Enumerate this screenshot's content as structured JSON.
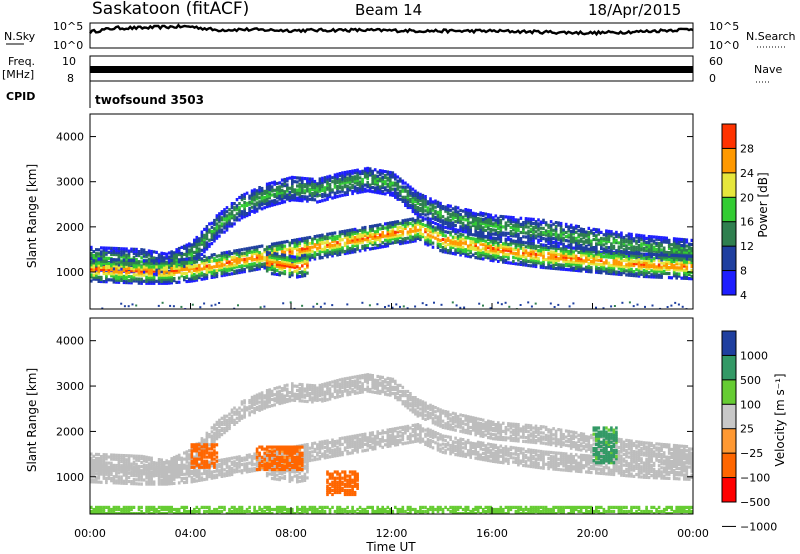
{
  "header": {
    "station": "Saskatoon (fitACF)",
    "beam": "Beam 14",
    "date": "18/Apr/2015"
  },
  "colors": {
    "power": [
      "#1e1eff",
      "#1f3f9f",
      "#2f7f4f",
      "#33cc33",
      "#e6e63c",
      "#ff9900",
      "#ff3300"
    ],
    "velocity": [
      "#ff0000",
      "#ff6600",
      "#ff9933",
      "#c8c8c8",
      "#66cc33",
      "#339966",
      "#1f3f9f"
    ],
    "ground_scatter": "#bdbdbd"
  },
  "chart_data": [
    {
      "type": "line",
      "name": "nsky-nsearch",
      "left_label": "N.Sky",
      "right_label": "N.Search",
      "left_ticks": [
        "10^5",
        "10^0"
      ],
      "right_ticks": [
        "10^5",
        "10^0"
      ],
      "x_hours": [
        0,
        1,
        2,
        3,
        4,
        5,
        6,
        8,
        10,
        12,
        14,
        16,
        18,
        20,
        22,
        24
      ],
      "log_values": [
        3.2,
        4.0,
        4.0,
        4.2,
        4.3,
        3.6,
        3.7,
        3.5,
        3.6,
        3.5,
        3.4,
        3.4,
        3.2,
        3.0,
        3.3,
        3.8
      ]
    },
    {
      "type": "line",
      "name": "frequency-nave",
      "left_label": "Freq.",
      "left_unit": "[MHz]",
      "right_label": "Nave",
      "left_ticks": [
        "10",
        "8"
      ],
      "right_ticks": [
        "60",
        "0"
      ],
      "approx_freq_mhz": 9.4
    },
    {
      "type": "table",
      "name": "cpid",
      "label": "CPID",
      "value": "twofsound 3503"
    },
    {
      "type": "heatmap",
      "name": "power",
      "ylabel": "Slant Range [km]",
      "yticks": [
        1000,
        2000,
        3000,
        4000
      ],
      "ylim": [
        180,
        4500
      ],
      "colorbar_label": "Power [dB]",
      "colorbar_ticks": [
        4,
        8,
        12,
        16,
        20,
        24,
        28
      ],
      "colorbar_range": [
        0,
        30
      ],
      "bands": [
        {
          "range_km_at_hour": [
            [
              0,
              1300
            ],
            [
              2,
              1250
            ],
            [
              3,
              1150
            ],
            [
              4,
              1400
            ],
            [
              5,
              2000
            ],
            [
              6,
              2450
            ],
            [
              7,
              2700
            ],
            [
              8,
              2850
            ],
            [
              9,
              2800
            ],
            [
              10,
              2950
            ],
            [
              11,
              3050
            ],
            [
              12,
              2950
            ],
            [
              13,
              2500
            ],
            [
              14,
              2250
            ],
            [
              16,
              2000
            ],
            [
              18,
              1900
            ],
            [
              20,
              1700
            ],
            [
              22,
              1550
            ],
            [
              24,
              1450
            ]
          ],
          "peak_db": 14
        },
        {
          "range_km_at_hour": [
            [
              0,
              1050
            ],
            [
              2,
              1000
            ],
            [
              3,
              1000
            ],
            [
              4,
              1050
            ],
            [
              13,
              1950
            ],
            [
              14,
              1700
            ],
            [
              16,
              1500
            ],
            [
              18,
              1350
            ],
            [
              20,
              1250
            ],
            [
              22,
              1150
            ],
            [
              24,
              1100
            ]
          ],
          "peak_db": 26
        },
        {
          "range_km_at_hour": [
            [
              7.0,
              1200
            ],
            [
              7.6,
              1150
            ],
            [
              8.1,
              1100
            ],
            [
              8.6,
              1150
            ]
          ],
          "peak_db": 28
        }
      ]
    },
    {
      "type": "heatmap",
      "name": "velocity",
      "ylabel": "Slant Range [km]",
      "yticks": [
        1000,
        2000,
        3000,
        4000
      ],
      "ylim": [
        180,
        4500
      ],
      "xlabel": "Time UT",
      "xticks": [
        "00:00",
        "04:00",
        "08:00",
        "12:00",
        "16:00",
        "20:00",
        "00:00"
      ],
      "colorbar_label": "Velocity [m s⁻¹]",
      "colorbar_ticks": [
        "1000",
        "500",
        "100",
        "25",
        "−25",
        "−100",
        "−500",
        "−1000"
      ],
      "ground_scatter_note": "grey",
      "patches": [
        {
          "hour": [
            4.0,
            5.0
          ],
          "range_km": [
            1200,
            1700
          ],
          "velocity": -300
        },
        {
          "hour": [
            6.6,
            8.4
          ],
          "range_km": [
            1150,
            1650
          ],
          "velocity": -150
        },
        {
          "hour": [
            9.4,
            10.6
          ],
          "range_km": [
            600,
            1100
          ],
          "velocity": -200
        },
        {
          "hour": [
            20.0,
            21.0
          ],
          "range_km": [
            1300,
            2100
          ],
          "velocity": 150
        },
        {
          "hour": [
            0.0,
            24.0
          ],
          "range_km": [
            180,
            320
          ],
          "velocity": 60
        }
      ]
    }
  ]
}
